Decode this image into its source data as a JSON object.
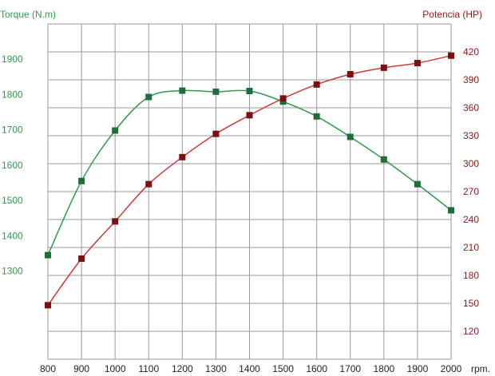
{
  "chart_data": {
    "type": "line",
    "left_axis": {
      "label": "Torque (N.m)",
      "color": "#2e9a4e",
      "range": [
        1050,
        2000
      ],
      "ticks": [
        "1300",
        "1400",
        "1500",
        "1600",
        "1700",
        "1800",
        "1900"
      ]
    },
    "right_axis": {
      "label": "Potencia (HP)",
      "color": "#8b1a1a",
      "range": [
        90,
        450
      ],
      "ticks": [
        "120",
        "150",
        "180",
        "210",
        "240",
        "270",
        "300",
        "330",
        "360",
        "390",
        "420"
      ]
    },
    "x_axis": {
      "unit": "rpm.",
      "range": [
        800,
        2000
      ],
      "ticks": [
        "800",
        "900",
        "1000",
        "1100",
        "1200",
        "1300",
        "1400",
        "1500",
        "1600",
        "1700",
        "1800",
        "1900",
        "2000"
      ]
    },
    "x": [
      800,
      900,
      1000,
      1100,
      1200,
      1300,
      1400,
      1500,
      1600,
      1700,
      1800,
      1900,
      2000
    ],
    "series": [
      {
        "name": "Torque (N.m)",
        "axis": "left",
        "color": "#2e9a4e",
        "marker_color": "#1f6e3a",
        "values": [
          1345,
          1555,
          1698,
          1793,
          1811,
          1808,
          1810,
          1780,
          1738,
          1680,
          1616,
          1546,
          1472
        ]
      },
      {
        "name": "Potencia (HP)",
        "axis": "right",
        "color": "#d03838",
        "marker_color": "#7a1010",
        "values": [
          148,
          198,
          238,
          278,
          307,
          332,
          352,
          370,
          385,
          396,
          403,
          408,
          416
        ]
      }
    ],
    "grid": true
  }
}
